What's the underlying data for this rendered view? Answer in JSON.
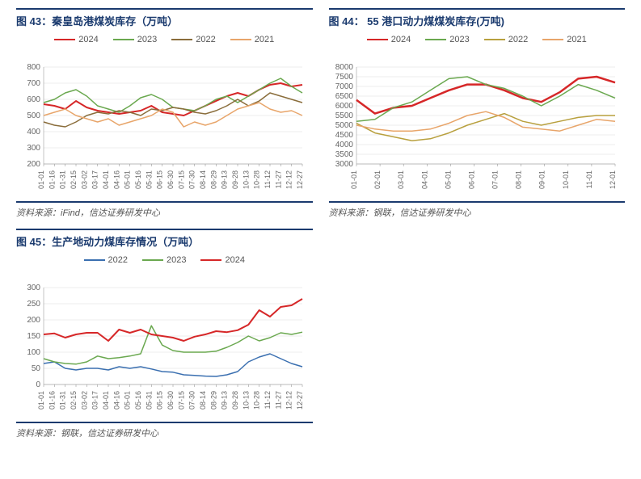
{
  "chart43": {
    "type": "line",
    "title": "图 43：秦皇岛港煤炭库存（万吨）",
    "source": "资料来源：iFind，信达证券研发中心",
    "background_color": "#ffffff",
    "grid_color": "#d9d9d9",
    "ylim": [
      200,
      800
    ],
    "ytick_step": 100,
    "xticks": [
      "01-01",
      "01-16",
      "01-31",
      "02-15",
      "03-02",
      "03-17",
      "04-01",
      "04-16",
      "05-01",
      "05-16",
      "05-31",
      "06-15",
      "06-30",
      "07-15",
      "07-30",
      "08-14",
      "08-29",
      "09-13",
      "09-28",
      "10-13",
      "10-28",
      "11-12",
      "11-27",
      "12-12",
      "12-27"
    ],
    "xtick_rotation": -90,
    "series": [
      {
        "label": "2024",
        "color": "#d62728",
        "width": 2.0,
        "values": [
          570,
          560,
          540,
          590,
          550,
          530,
          520,
          510,
          520,
          530,
          560,
          520,
          510,
          500,
          530,
          560,
          590,
          620,
          640,
          620,
          660,
          690,
          700,
          680,
          690
        ]
      },
      {
        "label": "2023",
        "color": "#6aa84f",
        "width": 1.5,
        "values": [
          580,
          600,
          640,
          660,
          620,
          560,
          540,
          520,
          560,
          610,
          630,
          600,
          550,
          540,
          530,
          560,
          600,
          620,
          580,
          620,
          660,
          700,
          730,
          680,
          640
        ]
      },
      {
        "label": "2022",
        "color": "#8a6d3b",
        "width": 1.5,
        "values": [
          460,
          440,
          430,
          460,
          500,
          520,
          510,
          530,
          520,
          500,
          540,
          530,
          550,
          540,
          520,
          510,
          530,
          560,
          600,
          560,
          590,
          640,
          620,
          600,
          580
        ]
      },
      {
        "label": "2021",
        "color": "#e8a56a",
        "width": 1.5,
        "values": [
          500,
          520,
          540,
          500,
          480,
          460,
          480,
          440,
          460,
          480,
          500,
          540,
          520,
          430,
          460,
          440,
          460,
          500,
          540,
          560,
          580,
          540,
          520,
          530,
          500
        ]
      }
    ]
  },
  "chart44": {
    "type": "line",
    "title": "图 44： 55 港口动力煤煤炭库存(万吨)",
    "source": "资料来源：钢联，信达证券研发中心",
    "background_color": "#ffffff",
    "grid_color": "#d9d9d9",
    "ylim": [
      3000,
      8000
    ],
    "ytick_step": 500,
    "xticks": [
      "01-01",
      "02-01",
      "03-01",
      "04-01",
      "05-01",
      "06-01",
      "07-01",
      "08-01",
      "09-01",
      "10-01",
      "11-01",
      "12-01"
    ],
    "xtick_rotation": -90,
    "series": [
      {
        "label": "2024",
        "color": "#d62728",
        "width": 2.5,
        "values": [
          6300,
          5600,
          5900,
          6000,
          6400,
          6800,
          7100,
          7100,
          6800,
          6400,
          6200,
          6700,
          7400,
          7500,
          7200
        ]
      },
      {
        "label": "2023",
        "color": "#6aa84f",
        "width": 1.5,
        "values": [
          5200,
          5300,
          5900,
          6200,
          6800,
          7400,
          7500,
          7100,
          6900,
          6500,
          6000,
          6500,
          7100,
          6800,
          6400
        ]
      },
      {
        "label": "2022",
        "color": "#b8a03e",
        "width": 1.5,
        "values": [
          5100,
          4600,
          4400,
          4200,
          4300,
          4600,
          5000,
          5300,
          5600,
          5200,
          5000,
          5200,
          5400,
          5500,
          5500
        ]
      },
      {
        "label": "2021",
        "color": "#e8a56a",
        "width": 1.5,
        "values": [
          5000,
          4800,
          4700,
          4700,
          4800,
          5100,
          5500,
          5700,
          5400,
          4900,
          4800,
          4700,
          5000,
          5300,
          5200
        ]
      }
    ]
  },
  "chart45": {
    "type": "line",
    "title": "图 45：生产地动力煤库存情况（万吨）",
    "source": "资料来源：钢联，信达证券研发中心",
    "background_color": "#ffffff",
    "grid_color": "#d9d9d9",
    "ylim": [
      0,
      300
    ],
    "ytick_step": 50,
    "xticks": [
      "01-01",
      "01-16",
      "01-31",
      "02-15",
      "03-02",
      "03-17",
      "04-01",
      "04-16",
      "05-01",
      "05-16",
      "05-31",
      "06-15",
      "06-30",
      "07-15",
      "07-30",
      "08-14",
      "08-29",
      "09-13",
      "09-28",
      "10-13",
      "10-28",
      "11-12",
      "11-27",
      "12-12",
      "12-27"
    ],
    "xtick_rotation": -90,
    "series": [
      {
        "label": "2022",
        "color": "#3a6fb0",
        "width": 1.5,
        "values": [
          65,
          70,
          50,
          45,
          50,
          50,
          45,
          55,
          50,
          55,
          48,
          40,
          38,
          30,
          28,
          26,
          25,
          30,
          40,
          70,
          85,
          95,
          80,
          65,
          55
        ]
      },
      {
        "label": "2023",
        "color": "#6aa84f",
        "width": 1.5,
        "values": [
          80,
          70,
          65,
          63,
          70,
          88,
          80,
          83,
          88,
          95,
          182,
          122,
          105,
          100,
          100,
          100,
          103,
          115,
          130,
          150,
          135,
          145,
          160,
          155,
          162
        ]
      },
      {
        "label": "2024",
        "color": "#d62728",
        "width": 2.0,
        "values": [
          155,
          158,
          145,
          155,
          160,
          160,
          135,
          170,
          160,
          170,
          155,
          150,
          145,
          135,
          148,
          155,
          165,
          162,
          168,
          185,
          230,
          210,
          240,
          245,
          265
        ]
      }
    ]
  }
}
